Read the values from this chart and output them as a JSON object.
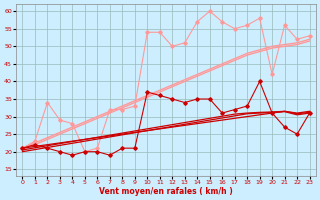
{
  "x": [
    0,
    1,
    2,
    3,
    4,
    5,
    6,
    7,
    8,
    9,
    10,
    11,
    12,
    13,
    14,
    15,
    16,
    17,
    18,
    19,
    20,
    21,
    22,
    23
  ],
  "dark_markers": [
    21,
    22,
    21,
    20,
    19,
    20,
    20,
    19,
    21,
    21,
    37,
    36,
    35,
    34,
    35,
    35,
    31,
    32,
    33,
    40,
    31,
    27,
    25,
    31
  ],
  "dark_line1": [
    20,
    20.6,
    21.2,
    21.8,
    22.4,
    23.0,
    23.6,
    24.2,
    24.8,
    25.4,
    26.0,
    26.6,
    27.2,
    27.8,
    28.4,
    29.0,
    29.6,
    30.2,
    30.8,
    31.0,
    31.2,
    31.4,
    30.5,
    31.0
  ],
  "dark_line2": [
    20.5,
    21.1,
    21.7,
    22.3,
    22.9,
    23.5,
    24.1,
    24.7,
    25.3,
    25.9,
    26.5,
    27.1,
    27.7,
    28.3,
    28.9,
    29.5,
    30.1,
    30.7,
    31.0,
    31.2,
    31.3,
    31.5,
    30.8,
    31.2
  ],
  "dark_line3": [
    21,
    21.5,
    22,
    22.5,
    23,
    23.5,
    24,
    24.5,
    25,
    25.5,
    26,
    26.5,
    27,
    27.5,
    28,
    28.5,
    29,
    29.5,
    30,
    30.5,
    31,
    31.5,
    31,
    31.5
  ],
  "light_markers": [
    21,
    23,
    34,
    29,
    28,
    20,
    21,
    32,
    32,
    33,
    54,
    54,
    50,
    51,
    57,
    60,
    57,
    55,
    56,
    58,
    42,
    56,
    52,
    53
  ],
  "light_line1": [
    21,
    22.5,
    24,
    25.5,
    27,
    28.5,
    30,
    31.5,
    33,
    34.5,
    36,
    37.5,
    39,
    40.5,
    42,
    43.5,
    45,
    46.5,
    48,
    49,
    50,
    50.5,
    51,
    52
  ],
  "light_line2": [
    21,
    22,
    23.5,
    25,
    26.5,
    28,
    29.5,
    31,
    32.5,
    34,
    35.5,
    37,
    38.5,
    40,
    41.5,
    43,
    44.5,
    46,
    47.5,
    48.5,
    49.5,
    50,
    50.5,
    51.5
  ],
  "dashed_line": [
    13,
    13,
    13,
    13,
    13,
    13,
    13,
    13,
    13,
    13,
    13,
    13,
    13,
    13,
    13,
    13,
    13,
    13,
    13,
    13,
    13,
    13,
    13,
    13
  ],
  "bg_color": "#cceeff",
  "grid_color": "#99bbbb",
  "dark_red": "#cc0000",
  "light_red": "#ff9999",
  "dashed_red": "#ff6666",
  "xlabel": "Vent moyen/en rafales ( km/h )",
  "ylim": [
    13,
    62
  ],
  "xlim": [
    -0.5,
    23.5
  ],
  "yticks": [
    15,
    20,
    25,
    30,
    35,
    40,
    45,
    50,
    55,
    60
  ],
  "xticks": [
    0,
    1,
    2,
    3,
    4,
    5,
    6,
    7,
    8,
    9,
    10,
    11,
    12,
    13,
    14,
    15,
    16,
    17,
    18,
    19,
    20,
    21,
    22,
    23
  ]
}
